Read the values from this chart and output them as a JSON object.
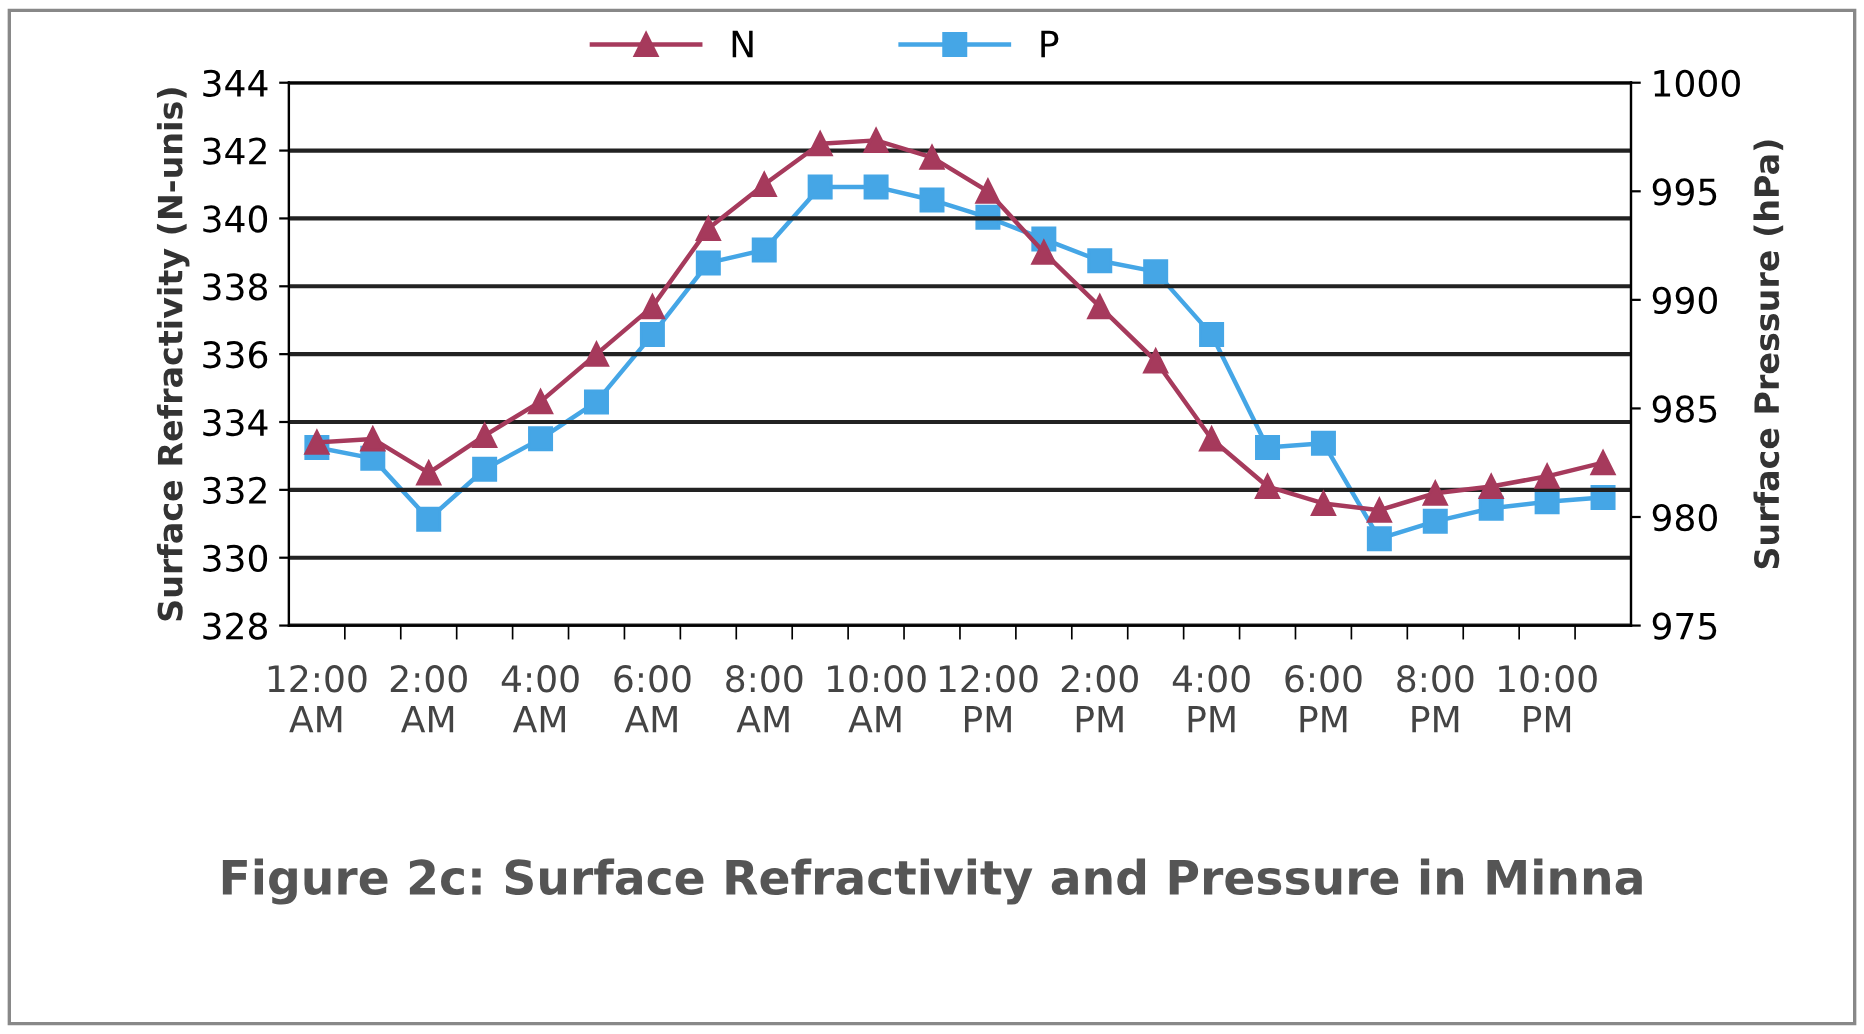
{
  "chart_data": {
    "type": "line",
    "title": "Figure 2c: Surface Refractivity and Pressure in Minna",
    "ylabel": "Surface Refractivity (N-unis)",
    "y2label": "Surface Pressure (hPa)",
    "categories": [
      "12:00\nAM",
      null,
      "2:00\nAM",
      null,
      "4:00\nAM",
      null,
      "6:00\nAM",
      null,
      "8:00\nAM",
      null,
      "10:00\nAM",
      null,
      "12:00\nPM",
      null,
      "2:00\nPM",
      null,
      "4:00\nPM",
      null,
      "6:00\nPM",
      null,
      "8:00\nPM",
      null,
      "10:00\nPM",
      null
    ],
    "series": [
      {
        "name": "N",
        "color": "#a63a5c",
        "marker": "triangle",
        "values": [
          333.4,
          333.5,
          332.5,
          333.6,
          334.6,
          336.0,
          337.4,
          339.7,
          341.0,
          342.2,
          342.3,
          341.8,
          340.8,
          339.0,
          337.4,
          335.8,
          333.5,
          332.1,
          331.6,
          331.4,
          331.9,
          332.1,
          332.4,
          332.8
        ]
      },
      {
        "name": "P",
        "color": "#45a6e6",
        "marker": "square",
        "axis": "y2",
        "values": [
          983.2,
          982.7,
          979.9,
          982.2,
          983.6,
          985.3,
          988.4,
          991.7,
          992.3,
          995.2,
          995.2,
          994.6,
          993.8,
          992.8,
          991.8,
          991.3,
          988.4,
          983.2,
          983.4,
          979.0,
          979.8,
          980.4,
          980.7,
          980.9
        ]
      }
    ],
    "ylim": [
      328,
      344
    ],
    "yticks": [
      328,
      330,
      332,
      334,
      336,
      338,
      340,
      342,
      344
    ],
    "y2lim": [
      975,
      1000
    ],
    "y2ticks": [
      975,
      980,
      985,
      990,
      995,
      1000
    ],
    "grid": "y",
    "legend": "top",
    "line_style": "solid"
  }
}
